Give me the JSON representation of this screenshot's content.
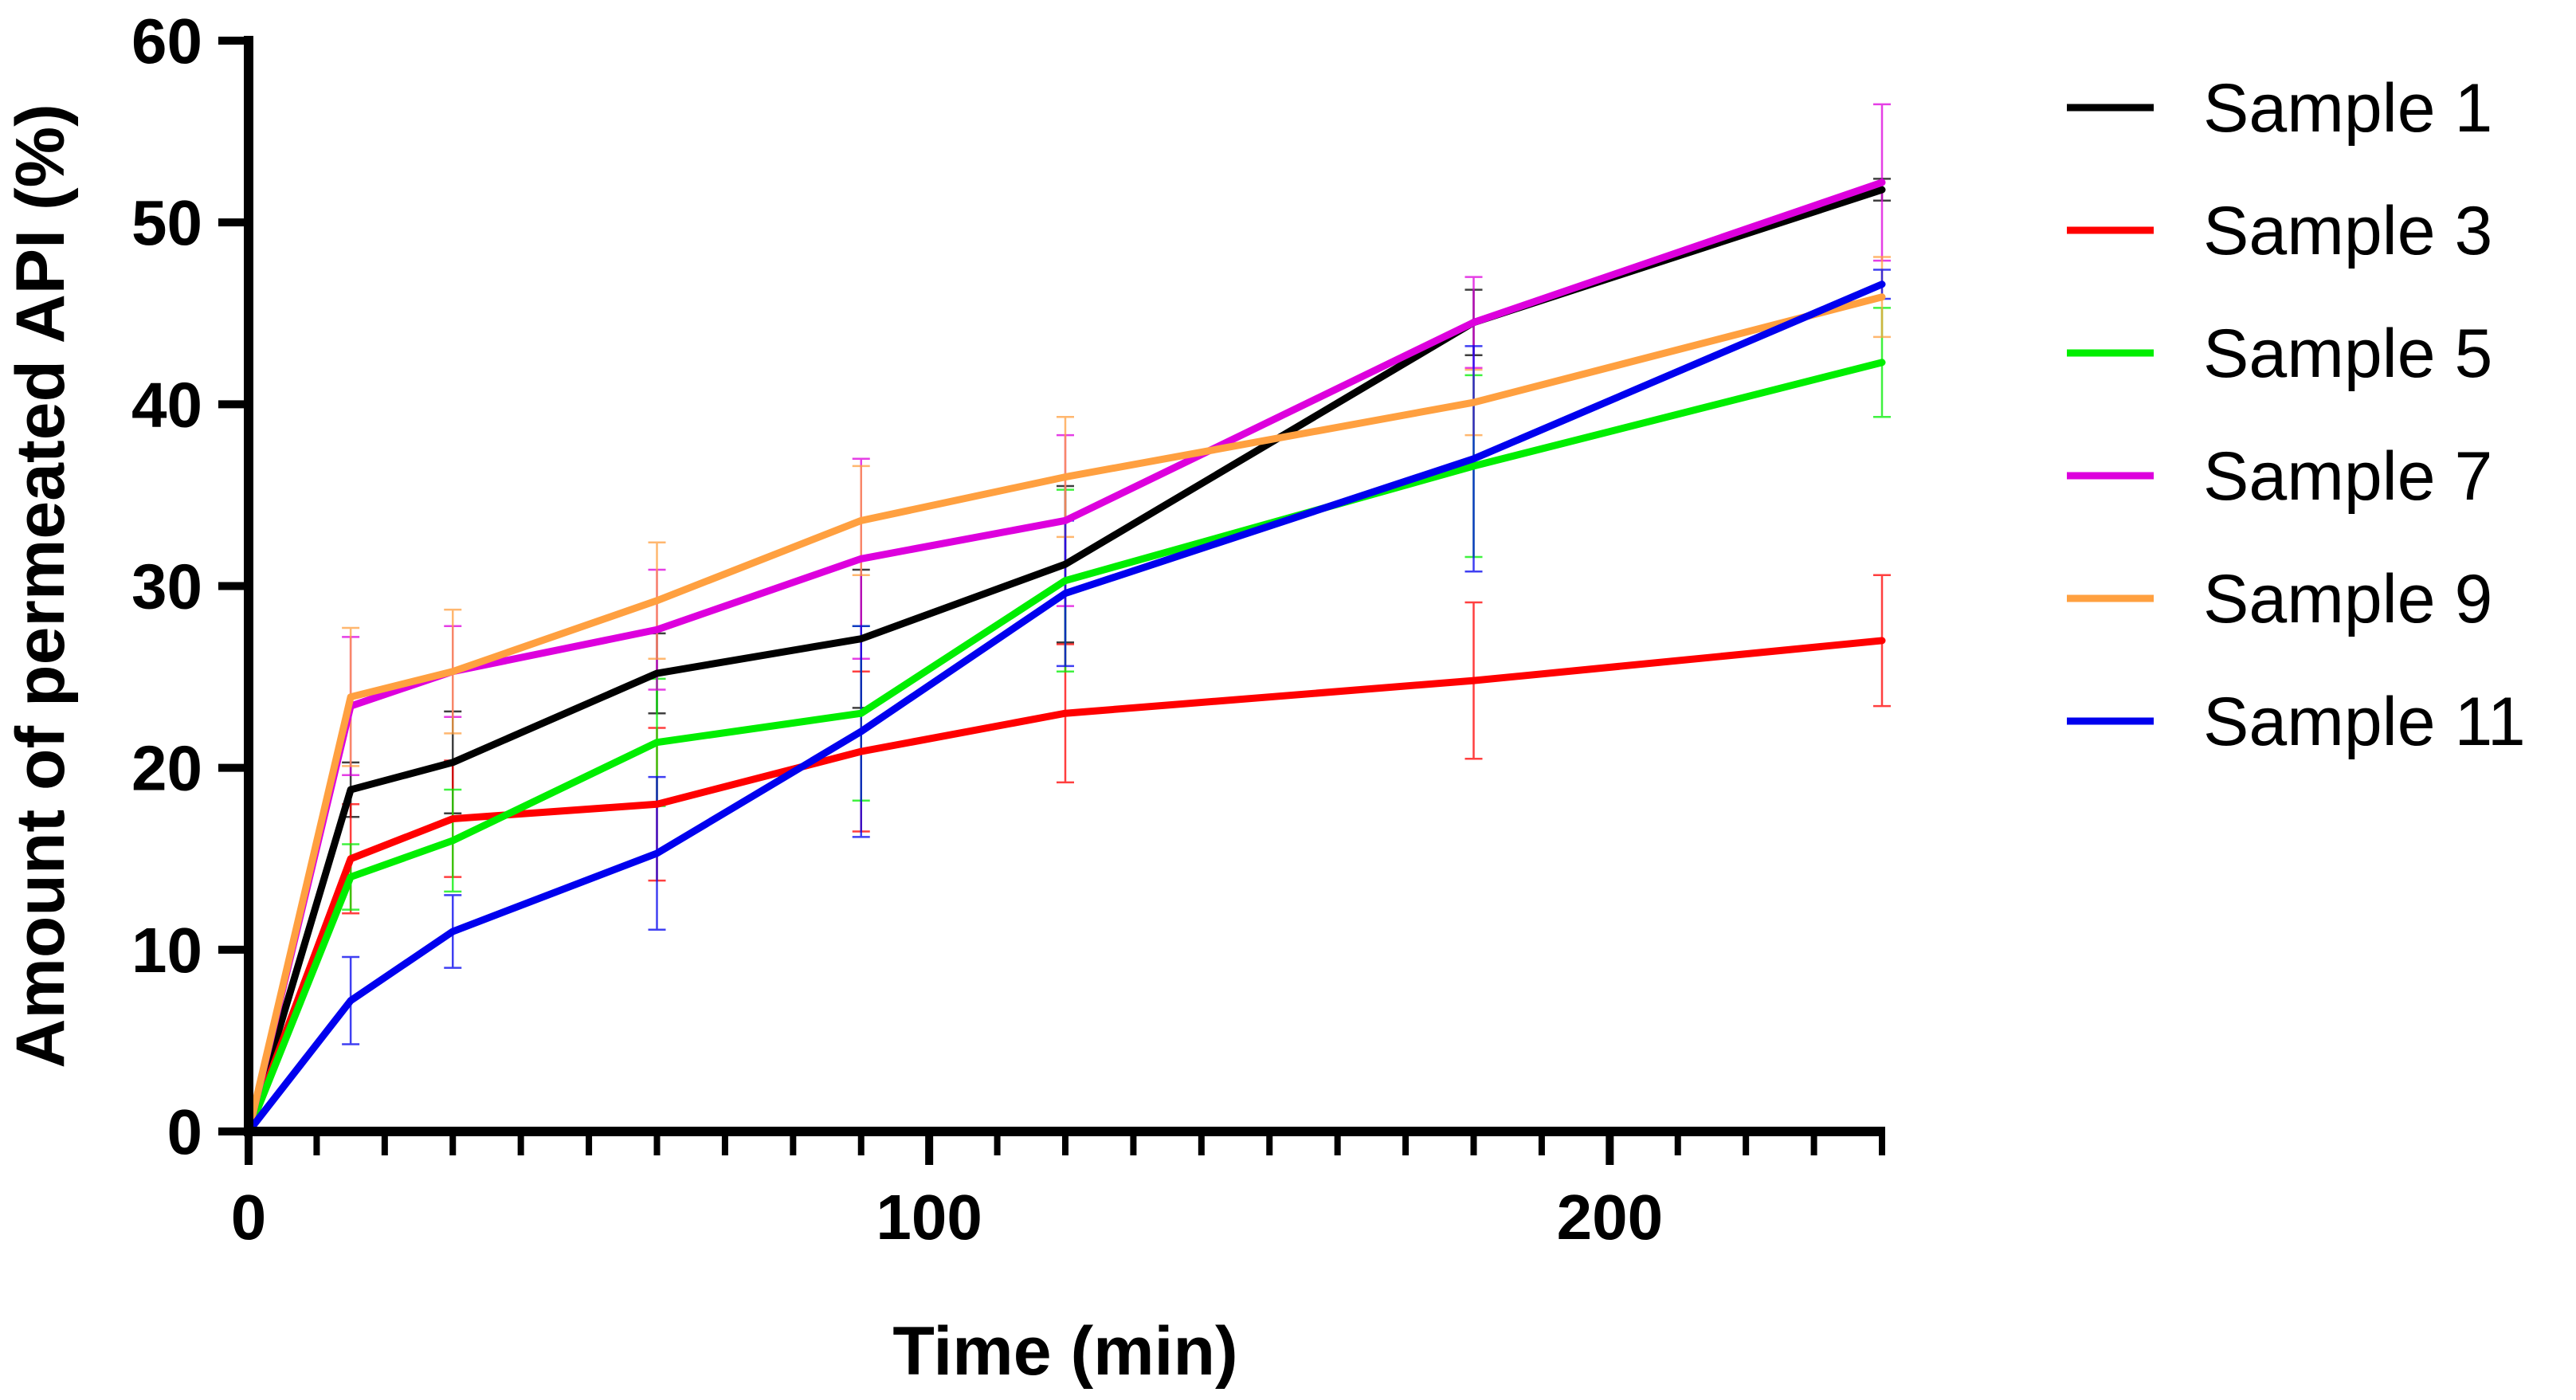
{
  "chart_data": {
    "type": "line",
    "title": "",
    "xlabel": "Time (min)",
    "ylabel": "Amount of permeated API (%)",
    "xlim": [
      0,
      240
    ],
    "ylim": [
      0,
      60
    ],
    "x_ticks": [
      0,
      100,
      200
    ],
    "x_tick_labels": [
      "0",
      "100",
      "200"
    ],
    "y_ticks": [
      0,
      10,
      20,
      30,
      40,
      50,
      60
    ],
    "y_tick_labels": [
      "0",
      "10",
      "20",
      "30",
      "40",
      "50",
      "60"
    ],
    "grid": false,
    "legend_position": "right",
    "x": [
      0,
      15,
      30,
      60,
      90,
      120,
      180,
      240
    ],
    "series": [
      {
        "name": "Sample 1",
        "color": "#000000",
        "values": [
          0,
          18.8,
          20.3,
          25.2,
          27.1,
          31.2,
          44.5,
          51.8
        ],
        "errors": [
          0,
          1.5,
          2.8,
          2.2,
          3.8,
          4.3,
          1.8,
          0.6
        ]
      },
      {
        "name": "Sample 3",
        "color": "#ff0000",
        "values": [
          0,
          15.0,
          17.2,
          18.0,
          20.9,
          23.0,
          24.8,
          27.0
        ],
        "errors": [
          0,
          3.0,
          3.2,
          4.2,
          4.4,
          3.8,
          4.3,
          3.6
        ]
      },
      {
        "name": "Sample 5",
        "color": "#00ee00",
        "values": [
          0,
          14.0,
          16.0,
          21.4,
          23.0,
          30.3,
          36.6,
          42.3
        ],
        "errors": [
          0,
          1.8,
          2.8,
          3.5,
          4.8,
          5.0,
          5.0,
          3.0
        ]
      },
      {
        "name": "Sample 7",
        "color": "#dd00dd",
        "values": [
          0,
          23.4,
          25.3,
          27.6,
          31.5,
          33.6,
          44.5,
          52.2
        ],
        "errors": [
          0,
          3.8,
          2.5,
          3.3,
          5.5,
          4.7,
          2.5,
          4.3
        ]
      },
      {
        "name": "Sample 9",
        "color": "#ffa040",
        "values": [
          0,
          23.9,
          25.3,
          29.2,
          33.6,
          36.0,
          40.1,
          45.9
        ],
        "errors": [
          0,
          3.8,
          3.4,
          3.2,
          3.0,
          3.3,
          1.8,
          2.2
        ]
      },
      {
        "name": "Sample 11",
        "color": "#0000ee",
        "values": [
          0,
          7.2,
          11.0,
          15.3,
          22.0,
          29.6,
          37.0,
          46.6
        ],
        "errors": [
          0,
          2.4,
          2.0,
          4.2,
          5.8,
          4.0,
          6.2,
          0.8
        ]
      }
    ]
  }
}
